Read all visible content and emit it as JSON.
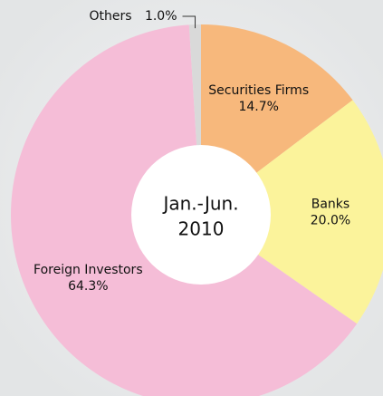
{
  "chart_data": {
    "type": "donut",
    "center_label": [
      "Jan.-Jun.",
      "2010"
    ],
    "categories": [
      "Securities Firms",
      "Banks",
      "Foreign Investors",
      "Others"
    ],
    "values": [
      14.7,
      20.0,
      64.3,
      1.0
    ],
    "value_labels": [
      "14.7%",
      "20.0%",
      "64.3%",
      "1.0%"
    ],
    "colors": [
      "#f7b87c",
      "#fbf39b",
      "#f5bdd7",
      "#d9d9d9"
    ]
  }
}
